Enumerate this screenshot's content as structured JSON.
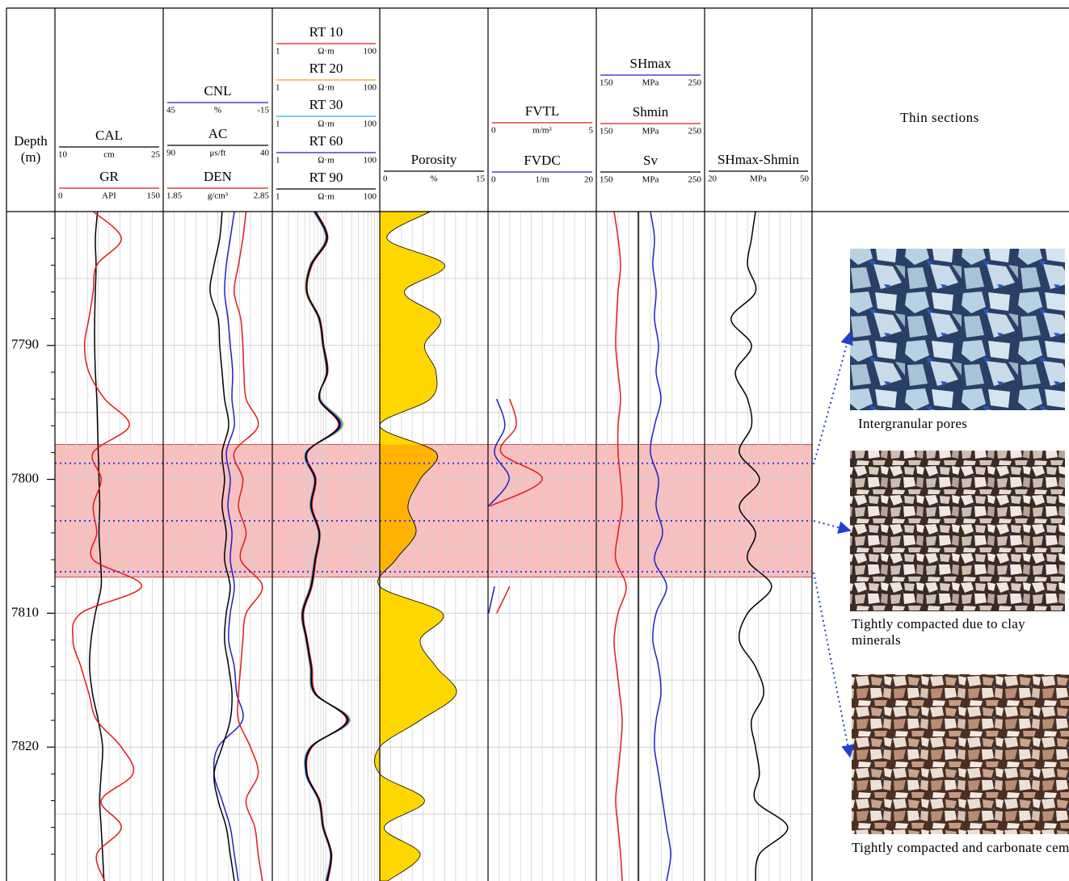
{
  "depth_title": "Depth",
  "depth_unit": "(m)",
  "thin_sections": {
    "title": "Thin sections",
    "captions": [
      "Intergranular pores",
      "Tightly compacted due to clay minerals",
      "Tightly compacted and carbonate cements"
    ]
  },
  "chart_data": {
    "type": "well-log",
    "depth": [
      7780,
      7782,
      7784,
      7786,
      7788,
      7790,
      7792,
      7794,
      7796,
      7798,
      7800,
      7802,
      7804,
      7806,
      7808,
      7810,
      7812,
      7814,
      7816,
      7818,
      7820,
      7822,
      7824,
      7826,
      7828,
      7830
    ],
    "ylim": [
      7780,
      7830
    ],
    "yticks": [
      7790,
      7800,
      7810,
      7820
    ],
    "minor_yticks": [
      7782,
      7784,
      7786,
      7788,
      7792,
      7794,
      7796,
      7798,
      7802,
      7804,
      7806,
      7808,
      7812,
      7814,
      7816,
      7818,
      7822,
      7824,
      7826,
      7828
    ],
    "hgrid": [
      7785,
      7795,
      7805,
      7815,
      7825
    ],
    "grid": true,
    "zone": [
      7797.4,
      7807.3
    ],
    "zone_color": "#f7b4b4",
    "markers": [
      7798.8,
      7803.1,
      7806.9
    ],
    "marker_color": "#3a3af0",
    "tracks": [
      {
        "curves": [
          {
            "name": "CAL",
            "unit": "cm",
            "xlim": [
              10,
              25
            ],
            "color": "#000000",
            "values": [
              15.9,
              15.6,
              15.7,
              15.6,
              15.5,
              15.5,
              15.6,
              15.8,
              15.9,
              16.0,
              16.1,
              16.2,
              16.1,
              16.3,
              16.4,
              15.6,
              15.0,
              14.8,
              15.2,
              16.0,
              16.6,
              16.4,
              16.2,
              16.4,
              16.6,
              16.8
            ]
          },
          {
            "name": "GR",
            "unit": "API",
            "xlim": [
              0,
              150
            ],
            "color": "#e01b1b",
            "values": [
              53,
              92,
              58,
              53,
              47,
              41,
              47,
              69,
              103,
              53,
              64,
              53,
              58,
              53,
              120,
              36,
              25,
              36,
              47,
              58,
              92,
              108,
              64,
              92,
              58,
              69
            ]
          }
        ]
      },
      {
        "curves": [
          {
            "name": "CNL",
            "unit": "%",
            "xlim": [
              45,
              -15
            ],
            "color": "#1f1fc8",
            "values": [
              5.9,
              8.1,
              10.3,
              11.2,
              9.4,
              8.1,
              6.8,
              7.2,
              5.9,
              10.3,
              8.1,
              9.4,
              7.2,
              8.1,
              5.9,
              8.1,
              9.0,
              5.9,
              4.6,
              1.4,
              14.8,
              17.0,
              12.6,
              8.1,
              5.9,
              3.7
            ]
          },
          {
            "name": "AC",
            "unit": "μs/ft",
            "xlim": [
              90,
              40
            ],
            "color": "#000000",
            "values": [
              63.0,
              64.1,
              66.7,
              68.5,
              64.8,
              64.1,
              63.0,
              61.9,
              60.0,
              63.0,
              61.9,
              63.0,
              61.1,
              61.9,
              59.3,
              61.1,
              61.9,
              60.0,
              58.5,
              59.3,
              63.0,
              66.7,
              64.8,
              61.1,
              59.3,
              57.4
            ]
          },
          {
            "name": "DEN",
            "unit": "g/cm³",
            "xlim": [
              1.85,
              2.85
            ],
            "color": "#e01b1b",
            "values": [
              2.61,
              2.58,
              2.54,
              2.5,
              2.56,
              2.58,
              2.59,
              2.61,
              2.72,
              2.5,
              2.58,
              2.54,
              2.61,
              2.56,
              2.76,
              2.61,
              2.58,
              2.56,
              2.54,
              2.54,
              2.65,
              2.72,
              2.61,
              2.69,
              2.72,
              2.76
            ]
          }
        ]
      },
      {
        "log": true,
        "curves": [
          {
            "name": "RT 10",
            "unit": "Ω·m",
            "xlim": [
              1,
              100
            ],
            "color": "#e01b1b",
            "values": [
              6.5,
              10.8,
              5.5,
              4.5,
              7.7,
              9.1,
              10.8,
              7.4,
              17.0,
              4.5,
              6.5,
              5.5,
              7.7,
              6.5,
              5.5,
              3.8,
              4.5,
              5.5,
              6.5,
              24,
              5.5,
              4.5,
              7.7,
              9.1,
              12.8,
              10.8
            ]
          },
          {
            "name": "RT 20",
            "unit": "Ω·m",
            "xlim": [
              1,
              100
            ],
            "color": "#f0a020",
            "values": [
              5.9,
              9.8,
              5.0,
              4.2,
              7.2,
              8.6,
              10.0,
              8.0,
              20.5,
              4.2,
              6.0,
              5.0,
              7.2,
              6.0,
              5.0,
              3.5,
              4.2,
              5.0,
              6.0,
              28,
              5.0,
              4.2,
              7.2,
              8.6,
              12.0,
              9.8
            ]
          },
          {
            "name": "RT 30",
            "unit": "Ω·m",
            "xlim": [
              1,
              100
            ],
            "color": "#20b4e6",
            "values": [
              6.0,
              10.0,
              5.1,
              4.3,
              7.3,
              8.7,
              10.1,
              7.8,
              19.5,
              4.2,
              6.1,
              5.1,
              7.3,
              6.1,
              5.1,
              3.6,
              4.3,
              5.1,
              6.1,
              27,
              5.1,
              4.2,
              7.3,
              8.7,
              12.1,
              10.0
            ]
          },
          {
            "name": "RT 60",
            "unit": "Ω·m",
            "xlim": [
              1,
              100
            ],
            "color": "#1f1fc8",
            "values": [
              6.1,
              10.2,
              5.2,
              4.4,
              7.4,
              8.8,
              10.3,
              7.6,
              18.5,
              4.3,
              6.2,
              5.2,
              7.4,
              6.2,
              5.2,
              3.6,
              4.3,
              5.2,
              6.2,
              26,
              5.2,
              4.3,
              7.4,
              8.8,
              12.3,
              10.2
            ]
          },
          {
            "name": "RT 90",
            "unit": "Ω·m",
            "xlim": [
              1,
              100
            ],
            "color": "#000000",
            "values": [
              6.3,
              10.5,
              5.3,
              4.4,
              7.5,
              8.9,
              10.5,
              7.5,
              17.7,
              4.4,
              6.3,
              5.3,
              7.5,
              6.3,
              5.3,
              3.7,
              4.4,
              5.3,
              6.3,
              25,
              5.3,
              4.4,
              7.5,
              8.9,
              12.5,
              10.5
            ]
          }
        ]
      },
      {
        "curves": [
          {
            "name": "Porosity",
            "unit": "%",
            "xlim": [
              0,
              15
            ],
            "color": "#000000",
            "fill": "#ffd700",
            "zone_fill": "#ffb300",
            "values": [
              7.0,
              1.0,
              9.0,
              3.4,
              8.4,
              6.2,
              7.8,
              7.0,
              0,
              7.8,
              5.6,
              3.9,
              5.0,
              2.2,
              0,
              8.7,
              5.6,
              7.8,
              10.6,
              5.6,
              0,
              0,
              6.2,
              0.6,
              5.6,
              1.1
            ]
          }
        ]
      },
      {
        "curves": [
          {
            "name": "FVTL",
            "unit": "m/m²",
            "xlim": [
              0,
              5
            ],
            "color": "#e01b1b",
            "values": [
              null,
              null,
              null,
              null,
              null,
              null,
              null,
              1.0,
              1.3,
              0.6,
              2.5,
              0.1,
              null,
              null,
              1.0,
              0.4,
              null,
              null,
              null,
              null,
              null,
              null,
              null,
              null,
              null,
              null
            ]
          },
          {
            "name": "FVDC",
            "unit": "1/m",
            "xlim": [
              0,
              20
            ],
            "color": "#1f1fc8",
            "values": [
              null,
              null,
              null,
              null,
              null,
              null,
              null,
              1.6,
              3.1,
              1.2,
              3.9,
              0.1,
              null,
              null,
              1.2,
              0.1,
              null,
              null,
              null,
              null,
              null,
              null,
              null,
              null,
              null,
              null
            ]
          }
        ]
      },
      {
        "curves": [
          {
            "name": "SHmax",
            "unit": "MPa",
            "xlim": [
              150,
              250
            ],
            "color": "#1f1fc8",
            "values": [
              200.0,
              203.7,
              202.2,
              205.2,
              203.7,
              207.5,
              205.2,
              209.7,
              203.7,
              200.0,
              207.5,
              205.2,
              211.2,
              203.7,
              214.9,
              205.2,
              202.2,
              207.5,
              209.7,
              205.2,
              203.7,
              207.5,
              211.2,
              214.9,
              218.7,
              214.9
            ]
          },
          {
            "name": "Shmin",
            "unit": "MPa",
            "xlim": [
              150,
              250
            ],
            "color": "#e01b1b",
            "values": [
              166.4,
              170.1,
              172.4,
              170.1,
              168.7,
              167.9,
              170.1,
              172.4,
              170.1,
              170.1,
              172.4,
              173.9,
              170.1,
              167.9,
              177.6,
              170.1,
              166.4,
              168.7,
              171.6,
              173.9,
              172.4,
              170.1,
              167.9,
              170.1,
              172.4,
              173.9
            ]
          },
          {
            "name": "Sv",
            "unit": "MPa",
            "xlim": [
              150,
              250
            ],
            "color": "#000000",
            "values": [
              188.8,
              188.8,
              188.8,
              188.8,
              188.8,
              188.8,
              188.8,
              188.8,
              188.8,
              188.8,
              188.8,
              188.8,
              188.8,
              188.8,
              188.8,
              188.8,
              188.8,
              188.8,
              188.8,
              188.8,
              188.8,
              188.8,
              188.8,
              188.8,
              188.8,
              188.8
            ]
          }
        ]
      },
      {
        "curves": [
          {
            "name": "SHmax-Shmin",
            "unit": "MPa",
            "xlim": [
              20,
              50
            ],
            "color": "#000000",
            "values": [
              34.2,
              33.1,
              32.0,
              34.2,
              27.4,
              33.1,
              28.6,
              32.0,
              33.1,
              29.7,
              35.3,
              29.7,
              34.2,
              32.0,
              38.7,
              32.0,
              29.7,
              34.2,
              36.5,
              33.1,
              34.2,
              35.3,
              34.2,
              43.2,
              35.3,
              34.2
            ]
          }
        ]
      }
    ]
  }
}
